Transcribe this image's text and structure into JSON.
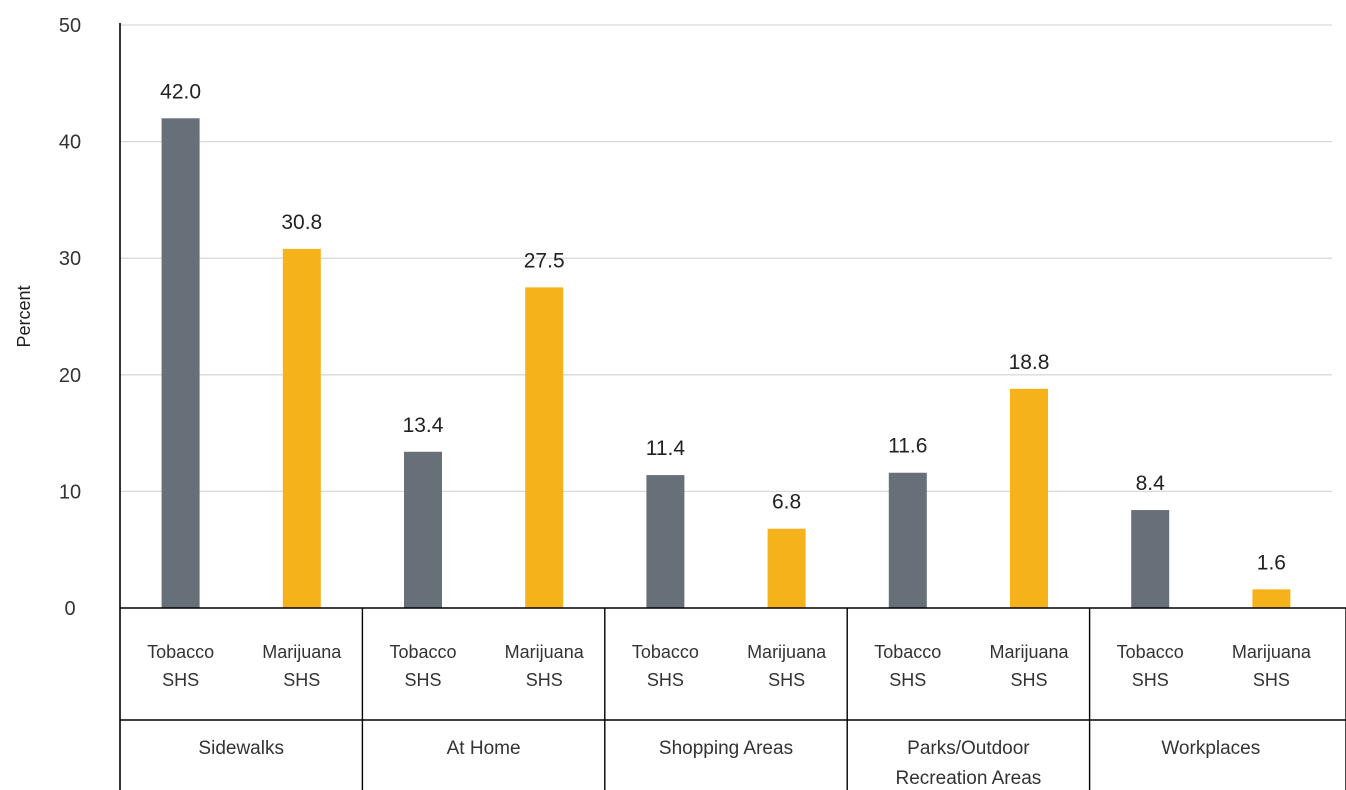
{
  "chart_data": {
    "type": "bar",
    "title": "",
    "ylabel": "Percent",
    "ylim": [
      0,
      50
    ],
    "yticks": [
      0,
      10,
      20,
      30,
      40,
      50
    ],
    "grid": true,
    "legend": "none",
    "colors": {
      "tobacco": "#676f78",
      "marijuana": "#f6b21b",
      "gridline": "#d9d9d9",
      "axis": "#000000"
    },
    "groups": [
      {
        "name": "Sidewalks",
        "lines": [
          "Sidewalks"
        ],
        "bars": [
          {
            "sub": [
              "Tobacco",
              "SHS"
            ],
            "series": "tobacco",
            "value": 42.0,
            "label": "42.0"
          },
          {
            "sub": [
              "Marijuana",
              "SHS"
            ],
            "series": "marijuana",
            "value": 30.8,
            "label": "30.8"
          }
        ]
      },
      {
        "name": "At Home",
        "lines": [
          "At Home"
        ],
        "bars": [
          {
            "sub": [
              "Tobacco",
              "SHS"
            ],
            "series": "tobacco",
            "value": 13.4,
            "label": "13.4"
          },
          {
            "sub": [
              "Marijuana",
              "SHS"
            ],
            "series": "marijuana",
            "value": 27.5,
            "label": "27.5"
          }
        ]
      },
      {
        "name": "Shopping Areas",
        "lines": [
          "Shopping Areas"
        ],
        "bars": [
          {
            "sub": [
              "Tobacco",
              "SHS"
            ],
            "series": "tobacco",
            "value": 11.4,
            "label": "11.4"
          },
          {
            "sub": [
              "Marijuana",
              "SHS"
            ],
            "series": "marijuana",
            "value": 6.8,
            "label": "6.8"
          }
        ]
      },
      {
        "name": "Parks/Outdoor Recreation Areas",
        "lines": [
          "Parks/Outdoor",
          "Recreation Areas"
        ],
        "bars": [
          {
            "sub": [
              "Tobacco",
              "SHS"
            ],
            "series": "tobacco",
            "value": 11.6,
            "label": "11.6"
          },
          {
            "sub": [
              "Marijuana",
              "SHS"
            ],
            "series": "marijuana",
            "value": 18.8,
            "label": "18.8"
          }
        ]
      },
      {
        "name": "Workplaces",
        "lines": [
          "Workplaces"
        ],
        "bars": [
          {
            "sub": [
              "Tobacco",
              "SHS"
            ],
            "series": "tobacco",
            "value": 8.4,
            "label": "8.4"
          },
          {
            "sub": [
              "Marijuana",
              "SHS"
            ],
            "series": "marijuana",
            "value": 1.6,
            "label": "1.6"
          }
        ]
      }
    ]
  }
}
